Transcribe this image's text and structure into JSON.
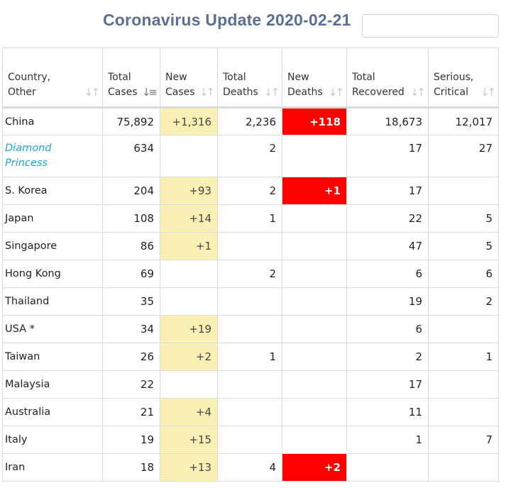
{
  "title": "Coronavirus Update 2020-02-21",
  "colors": {
    "title": "#5a6f94",
    "new_cases_highlight": "#fbf0b4",
    "new_deaths_highlight": "#ff0000",
    "link": "#1aa3d4"
  },
  "table": {
    "headers": [
      {
        "label": "Country,\nOther",
        "sort_icon": "sort-icon",
        "active": false
      },
      {
        "label": "Total\nCases",
        "sort_icon": "sort-desc-icon",
        "active": true
      },
      {
        "label": "New\nCases",
        "sort_icon": "sort-icon",
        "active": false
      },
      {
        "label": "Total\nDeaths",
        "sort_icon": "sort-icon",
        "active": false
      },
      {
        "label": "New\nDeaths",
        "sort_icon": "sort-icon",
        "active": false
      },
      {
        "label": "Total\nRecovered",
        "sort_icon": "sort-icon",
        "active": false
      },
      {
        "label": "Serious,\nCritical",
        "sort_icon": "sort-icon",
        "active": false
      }
    ],
    "rows": [
      {
        "country": "China",
        "total_cases": "75,892",
        "new_cases": "+1,316",
        "total_deaths": "2,236",
        "new_deaths": "+118",
        "total_recovered": "18,673",
        "serious": "12,017"
      },
      {
        "country": "Diamond\nPrincess",
        "link": true,
        "total_cases": "634",
        "new_cases": "",
        "total_deaths": "2",
        "new_deaths": "",
        "total_recovered": "17",
        "serious": "27"
      },
      {
        "country": "S. Korea",
        "total_cases": "204",
        "new_cases": "+93",
        "total_deaths": "2",
        "new_deaths": "+1",
        "total_recovered": "17",
        "serious": ""
      },
      {
        "country": "Japan",
        "total_cases": "108",
        "new_cases": "+14",
        "total_deaths": "1",
        "new_deaths": "",
        "total_recovered": "22",
        "serious": "5"
      },
      {
        "country": "Singapore",
        "total_cases": "86",
        "new_cases": "+1",
        "total_deaths": "",
        "new_deaths": "",
        "total_recovered": "47",
        "serious": "5"
      },
      {
        "country": "Hong Kong",
        "total_cases": "69",
        "new_cases": "",
        "total_deaths": "2",
        "new_deaths": "",
        "total_recovered": "6",
        "serious": "6"
      },
      {
        "country": "Thailand",
        "total_cases": "35",
        "new_cases": "",
        "total_deaths": "",
        "new_deaths": "",
        "total_recovered": "19",
        "serious": "2"
      },
      {
        "country": "USA *",
        "total_cases": "34",
        "new_cases": "+19",
        "total_deaths": "",
        "new_deaths": "",
        "total_recovered": "6",
        "serious": ""
      },
      {
        "country": "Taiwan",
        "total_cases": "26",
        "new_cases": "+2",
        "total_deaths": "1",
        "new_deaths": "",
        "total_recovered": "2",
        "serious": "1"
      },
      {
        "country": "Malaysia",
        "total_cases": "22",
        "new_cases": "",
        "total_deaths": "",
        "new_deaths": "",
        "total_recovered": "17",
        "serious": ""
      },
      {
        "country": "Australia",
        "total_cases": "21",
        "new_cases": "+4",
        "total_deaths": "",
        "new_deaths": "",
        "total_recovered": "11",
        "serious": ""
      },
      {
        "country": "Italy",
        "total_cases": "19",
        "new_cases": "+15",
        "total_deaths": "",
        "new_deaths": "",
        "total_recovered": "1",
        "serious": "7"
      },
      {
        "country": "Iran",
        "total_cases": "18",
        "new_cases": "+13",
        "total_deaths": "4",
        "new_deaths": "+2",
        "total_recovered": "",
        "serious": ""
      }
    ]
  }
}
